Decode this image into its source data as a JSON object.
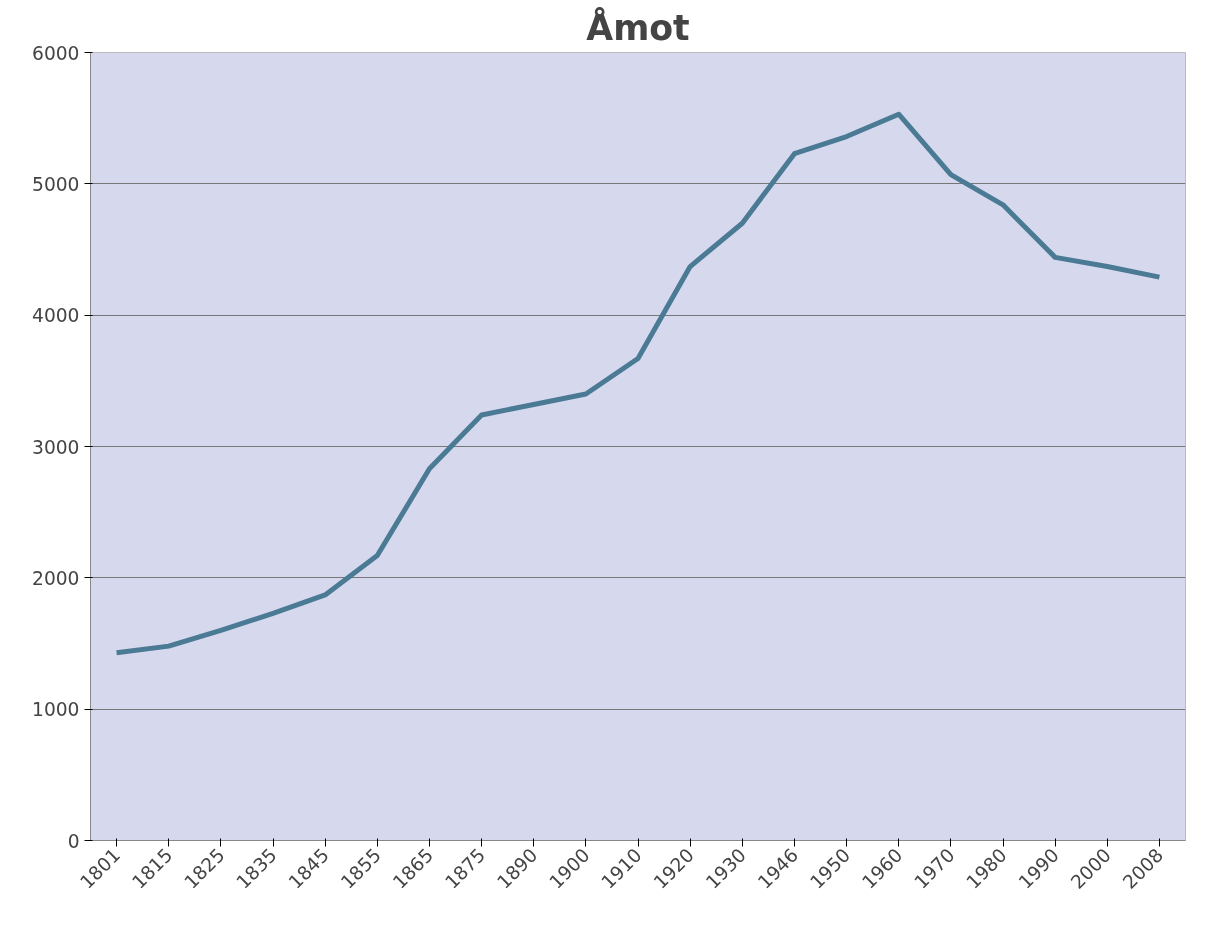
{
  "chart_data": {
    "type": "line",
    "title": "Åmot",
    "categories": [
      "1801",
      "1815",
      "1825",
      "1835",
      "1845",
      "1855",
      "1865",
      "1875",
      "1890",
      "1900",
      "1910",
      "1920",
      "1930",
      "1946",
      "1950",
      "1960",
      "1970",
      "1980",
      "1990",
      "2000",
      "2008"
    ],
    "series": [
      {
        "color": "#4a7a94",
        "values": [
          1430,
          1480,
          1600,
          1730,
          1870,
          2170,
          2830,
          3240,
          3320,
          3400,
          3670,
          4370,
          4700,
          5230,
          5360,
          5530,
          5070,
          4840,
          4440,
          4370,
          4290
        ]
      }
    ],
    "ylim": [
      0,
      6000
    ],
    "yticks": [
      0,
      1000,
      2000,
      3000,
      4000,
      5000,
      6000
    ],
    "grid": "y",
    "marker": "none",
    "line_style": "solid"
  }
}
